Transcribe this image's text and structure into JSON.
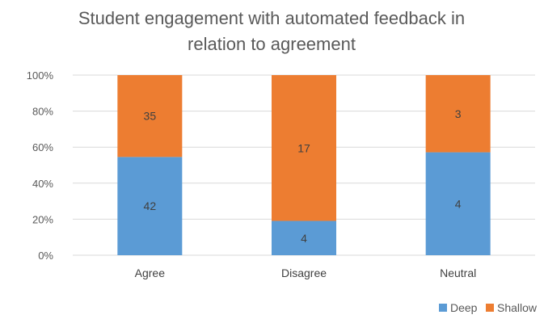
{
  "chart_data": {
    "type": "bar",
    "stacked": "percent",
    "title_lines": [
      "Student engagement with automated feedback in",
      "relation to agreement"
    ],
    "categories": [
      "Agree",
      "Disagree",
      "Neutral"
    ],
    "series": [
      {
        "name": "Deep",
        "values": [
          42,
          4,
          4
        ],
        "color": "#5b9bd5"
      },
      {
        "name": "Shallow",
        "values": [
          35,
          17,
          3
        ],
        "color": "#ed7d31"
      }
    ],
    "y_ticks": [
      "0%",
      "20%",
      "40%",
      "60%",
      "80%",
      "100%"
    ],
    "ylim": [
      0,
      100
    ],
    "grid": true,
    "legend_position": "bottom-right",
    "xlabel": "",
    "ylabel": ""
  }
}
